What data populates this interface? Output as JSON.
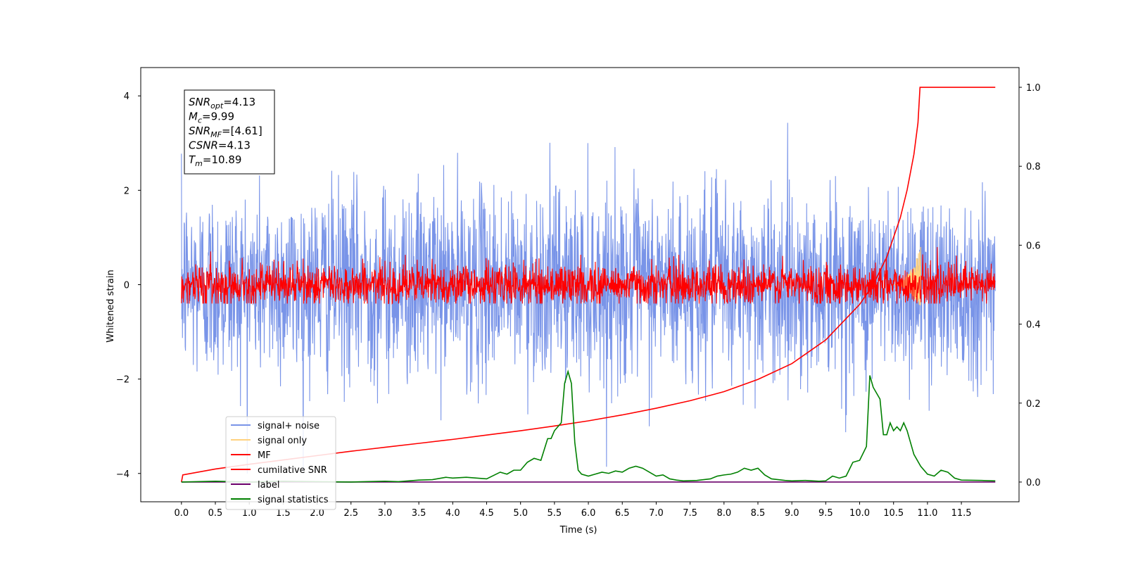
{
  "chart_data": {
    "type": "line",
    "xlabel": "Time (s)",
    "ylabel": "Whitened strain",
    "xlim": [
      -0.6,
      12.35
    ],
    "ylim": [
      -4.6,
      4.6
    ],
    "y2lim": [
      -0.05,
      1.05
    ],
    "x_ticks": [
      "0.0",
      "0.5",
      "1.0",
      "1.5",
      "2.0",
      "2.5",
      "3.0",
      "3.5",
      "4.0",
      "4.5",
      "5.0",
      "5.5",
      "6.0",
      "6.5",
      "7.0",
      "7.5",
      "8.0",
      "8.5",
      "9.0",
      "9.5",
      "10.0",
      "10.5",
      "11.0",
      "11.5"
    ],
    "y_ticks": [
      "−4",
      "−2",
      "0",
      "2",
      "4"
    ],
    "y2_ticks": [
      "0.0",
      "0.2",
      "0.4",
      "0.6",
      "0.8",
      "1.0"
    ],
    "grid": false,
    "legend_placement": "lower-left",
    "annotation": [
      {
        "main": "SNR",
        "sub": "opt",
        "value": "=4.13"
      },
      {
        "main": "M",
        "sub": "c",
        "value": "=9.99"
      },
      {
        "main": "SNR",
        "sub": "MF",
        "value": "=[4.61]"
      },
      {
        "main": "CSNR",
        "sub": "",
        "value": "=4.13"
      },
      {
        "main": "T",
        "sub": "m",
        "value": "=10.89"
      }
    ],
    "series": [
      {
        "name": "signal+ noise",
        "color": "#7994e8",
        "axis": "left",
        "x_range": [
          0.0,
          12.0
        ],
        "amplitude_sd": 1.0,
        "y_range": [
          -4.0,
          4.0
        ]
      },
      {
        "name": "signal only",
        "color": "#ffd27f",
        "axis": "left",
        "x_range": [
          10.5,
          10.9
        ],
        "y_range": [
          -0.5,
          0.8
        ]
      },
      {
        "name": "MF",
        "color": "#ff0000",
        "axis": "left",
        "x_range": [
          0.0,
          12.0
        ],
        "amplitude_sd": 0.22,
        "y_range": [
          -0.4,
          1.0
        ]
      },
      {
        "name": "cumilative SNR",
        "color": "#ff0000",
        "axis": "right",
        "x": [
          0.0,
          0.02,
          0.5,
          1.0,
          1.5,
          2.0,
          2.5,
          3.0,
          3.5,
          4.0,
          4.5,
          5.0,
          5.5,
          6.0,
          6.5,
          7.0,
          7.5,
          8.0,
          8.5,
          9.0,
          9.5,
          10.0,
          10.2,
          10.4,
          10.6,
          10.7,
          10.8,
          10.86,
          10.89,
          12.0
        ],
        "y": [
          0.0,
          0.018,
          0.033,
          0.045,
          0.056,
          0.067,
          0.078,
          0.088,
          0.098,
          0.108,
          0.119,
          0.13,
          0.142,
          0.155,
          0.17,
          0.187,
          0.206,
          0.229,
          0.26,
          0.3,
          0.36,
          0.45,
          0.5,
          0.57,
          0.67,
          0.74,
          0.83,
          0.91,
          1.0,
          1.0
        ]
      },
      {
        "name": "label",
        "color": "#6b006b",
        "axis": "right",
        "x": [
          0.0,
          12.0
        ],
        "y": [
          0.0,
          0.0
        ]
      },
      {
        "name": "signal statistics",
        "color": "#008000",
        "axis": "right",
        "x": [
          0.0,
          0.5,
          1.0,
          1.5,
          2.0,
          2.5,
          3.0,
          3.2,
          3.5,
          3.7,
          3.9,
          4.0,
          4.2,
          4.5,
          4.7,
          4.8,
          4.9,
          5.0,
          5.1,
          5.2,
          5.3,
          5.4,
          5.45,
          5.5,
          5.6,
          5.65,
          5.7,
          5.75,
          5.8,
          5.85,
          5.9,
          6.0,
          6.1,
          6.2,
          6.3,
          6.4,
          6.5,
          6.6,
          6.7,
          6.8,
          6.9,
          7.0,
          7.1,
          7.2,
          7.3,
          7.4,
          7.6,
          7.8,
          7.9,
          8.0,
          8.1,
          8.2,
          8.3,
          8.4,
          8.5,
          8.6,
          8.7,
          8.8,
          8.9,
          9.0,
          9.2,
          9.4,
          9.5,
          9.6,
          9.7,
          9.8,
          9.9,
          10.0,
          10.1,
          10.15,
          10.2,
          10.3,
          10.35,
          10.4,
          10.45,
          10.5,
          10.55,
          10.6,
          10.65,
          10.7,
          10.8,
          10.9,
          11.0,
          11.1,
          11.2,
          11.3,
          11.4,
          11.5,
          11.8,
          12.0
        ],
        "y": [
          0.0,
          0.002,
          0.0,
          0.002,
          0.001,
          0.0,
          0.002,
          0.001,
          0.005,
          0.006,
          0.012,
          0.01,
          0.012,
          0.008,
          0.025,
          0.02,
          0.03,
          0.03,
          0.05,
          0.06,
          0.055,
          0.11,
          0.11,
          0.13,
          0.15,
          0.25,
          0.28,
          0.25,
          0.1,
          0.03,
          0.02,
          0.015,
          0.02,
          0.025,
          0.022,
          0.028,
          0.025,
          0.035,
          0.04,
          0.035,
          0.025,
          0.015,
          0.018,
          0.008,
          0.005,
          0.003,
          0.004,
          0.008,
          0.015,
          0.018,
          0.02,
          0.025,
          0.035,
          0.03,
          0.035,
          0.018,
          0.008,
          0.006,
          0.004,
          0.003,
          0.004,
          0.002,
          0.003,
          0.015,
          0.01,
          0.015,
          0.05,
          0.055,
          0.09,
          0.27,
          0.24,
          0.21,
          0.12,
          0.12,
          0.15,
          0.13,
          0.14,
          0.13,
          0.15,
          0.13,
          0.07,
          0.04,
          0.02,
          0.015,
          0.03,
          0.025,
          0.01,
          0.005,
          0.004,
          0.003
        ]
      }
    ]
  }
}
